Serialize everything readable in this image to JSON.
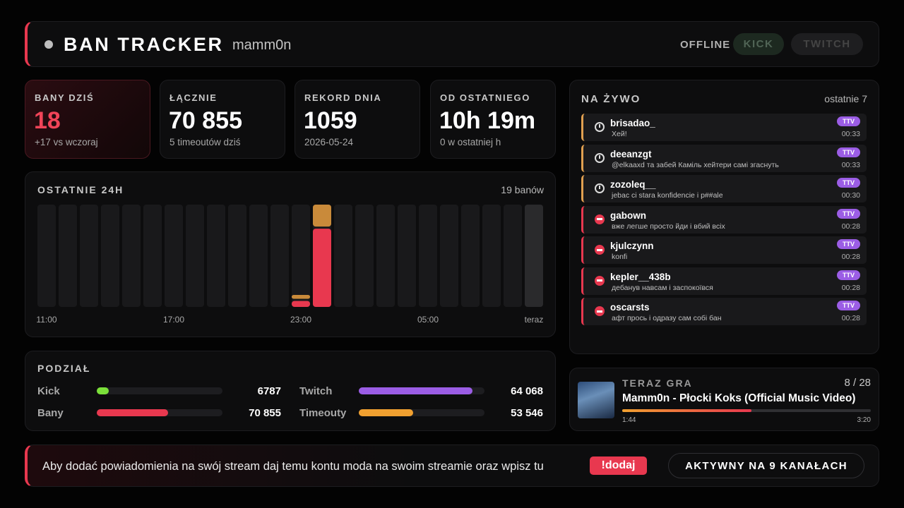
{
  "header": {
    "title": "BAN TRACKER",
    "channel": "mamm0n",
    "status": "OFFLINE",
    "buttons": [
      "KICK",
      "TWITCH"
    ]
  },
  "stats": [
    {
      "label": "BANY DZIŚ",
      "value": "18",
      "sub": "+17 vs wczoraj"
    },
    {
      "label": "ŁĄCZNIE",
      "value": "70 855",
      "sub": "5 timeoutów dziś"
    },
    {
      "label": "REKORD DNIA",
      "value": "1059",
      "sub": "2026-05-24"
    },
    {
      "label": "OD OSTATNIEGO",
      "value": "10h 19m",
      "sub": "0 w ostatniej h"
    }
  ],
  "chart_data": {
    "type": "bar",
    "stacked": true,
    "title": "OSTATNIE 24H",
    "subtitle": "19 banów",
    "categories": [
      "11:00",
      null,
      null,
      null,
      null,
      null,
      "17:00",
      null,
      null,
      null,
      null,
      null,
      "23:00",
      null,
      null,
      null,
      null,
      null,
      "05:00",
      null,
      null,
      null,
      null,
      "teraz"
    ],
    "series": [
      {
        "color": "#e8384f",
        "values": [
          0,
          0,
          0,
          0,
          0,
          0,
          0,
          0,
          0,
          0,
          0,
          0,
          1,
          13,
          0,
          0,
          0,
          0,
          0,
          0,
          0,
          0,
          0,
          0
        ]
      },
      {
        "color": "#c98a3a",
        "values": [
          0,
          0,
          0,
          0,
          0,
          0,
          0,
          0,
          0,
          0,
          0,
          0,
          1,
          4,
          0,
          0,
          0,
          0,
          0,
          0,
          0,
          0,
          0,
          0
        ]
      }
    ],
    "ylim": [
      0,
      17
    ]
  },
  "split": {
    "title": "PODZIAŁ",
    "rows": [
      [
        {
          "label": "Kick",
          "value": 6787,
          "value_label": "6787",
          "color": "#7be03a"
        },
        {
          "label": "Twitch",
          "value": 64068,
          "value_label": "64 068",
          "color": "#9b5de5"
        }
      ],
      [
        {
          "label": "Bany",
          "value": 70855,
          "value_label": "70 855",
          "color": "#e8384f"
        },
        {
          "label": "Timeouty",
          "value": 53546,
          "value_label": "53 546",
          "color": "#f0a030"
        }
      ]
    ]
  },
  "live": {
    "title": "NA ŻYWO",
    "subtitle": "ostatnie 7",
    "items": [
      {
        "user": "brisadao_",
        "message": "Хей!",
        "badge": "TTV",
        "time": "00:33",
        "icon": "timeout",
        "color": "#e0a050"
      },
      {
        "user": "deeanzgt",
        "message": "@elkaaxd та забей Каміль хейтери самі згаснуть",
        "badge": "TTV",
        "time": "00:33",
        "icon": "timeout",
        "color": "#e0a050"
      },
      {
        "user": "zozoleq__",
        "message": "jebac ci stara konfidencie i p##ale",
        "badge": "TTV",
        "time": "00:30",
        "icon": "timeout",
        "color": "#e0a050"
      },
      {
        "user": "gabown",
        "message": "вже легше просто йди і вбий всіх",
        "badge": "TTV",
        "time": "00:28",
        "icon": "ban",
        "color": "#e8384f"
      },
      {
        "user": "kjulczynn",
        "message": "konfi",
        "badge": "TTV",
        "time": "00:28",
        "icon": "ban",
        "color": "#e8384f"
      },
      {
        "user": "kepler__438b",
        "message": "дебанув навсам і заспокоївся",
        "badge": "TTV",
        "time": "00:28",
        "icon": "ban",
        "color": "#e8384f"
      },
      {
        "user": "oscarsts",
        "message": "афт прось і одразу сам собі бан",
        "badge": "TTV",
        "time": "00:28",
        "icon": "ban",
        "color": "#e8384f"
      }
    ]
  },
  "now_playing": {
    "title": "TERAZ GRA",
    "queue": "8 / 28",
    "track": "Mamm0n - Płocki Koks (Official Music Video)",
    "elapsed": "1:44",
    "duration": "3:20"
  },
  "footer": {
    "text": "Aby dodać powiadomienia na swój stream daj temu kontu moda na swoim streamie oraz wpisz tu",
    "command": "!dodaj",
    "status": "AKTYWNY NA 9 KANAŁACH"
  }
}
